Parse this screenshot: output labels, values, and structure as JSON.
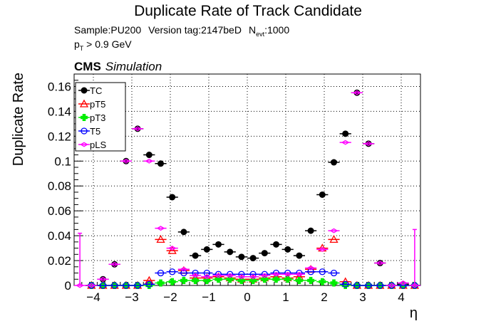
{
  "header": {
    "title": "Duplicate Rate of Track Candidate",
    "sample": "Sample:PU200",
    "version": "Version tag:2147beD",
    "nevt_symbol": "N",
    "nevt_sub": "evt",
    "nevt_value": ":1000",
    "pt_symbol": "p",
    "pt_sub": "T",
    "pt_cut": " > 0.9 GeV",
    "cms": "CMS",
    "simulation": "Simulation"
  },
  "chart_data": {
    "type": "scatter",
    "title": "Duplicate Rate of Track Candidate",
    "xlabel": "η",
    "ylabel": "Duplicate Rate",
    "xlim": [
      -4.5,
      4.5
    ],
    "ylim": [
      0,
      0.17
    ],
    "x_ticks": [
      "−4",
      "−3",
      "−2",
      "−1",
      "0",
      "1",
      "2",
      "3",
      "4"
    ],
    "x_tick_values": [
      -4,
      -3,
      -2,
      -1,
      0,
      1,
      2,
      3,
      4
    ],
    "y_ticks": [
      "0",
      "0.02",
      "0.04",
      "0.06",
      "0.08",
      "0.1",
      "0.12",
      "0.14",
      "0.16"
    ],
    "y_tick_values": [
      0,
      0.02,
      0.04,
      0.06,
      0.08,
      0.1,
      0.12,
      0.14,
      0.16
    ],
    "grid": true,
    "legend_position": "top-left",
    "x": [
      -4.35,
      -4.05,
      -3.75,
      -3.45,
      -3.15,
      -2.85,
      -2.55,
      -2.25,
      -1.95,
      -1.65,
      -1.35,
      -1.05,
      -0.75,
      -0.45,
      -0.15,
      0.15,
      0.45,
      0.75,
      1.05,
      1.35,
      1.65,
      1.95,
      2.25,
      2.55,
      2.85,
      3.15,
      3.45,
      3.75,
      4.05,
      4.35
    ],
    "x_err": 0.15,
    "series": [
      {
        "name": "TC",
        "color": "#000000",
        "marker": "filled-circle",
        "values": [
          null,
          0.0,
          0.005,
          0.017,
          0.1,
          0.126,
          0.105,
          0.098,
          0.071,
          0.043,
          0.024,
          0.029,
          0.033,
          0.027,
          0.023,
          0.022,
          0.026,
          0.033,
          0.029,
          0.024,
          0.044,
          0.073,
          0.099,
          0.122,
          0.155,
          0.114,
          0.018,
          0.0,
          0.001,
          0.0
        ]
      },
      {
        "name": "pT5",
        "color": "#ff0000",
        "marker": "open-triangle",
        "values": [
          null,
          0.0,
          0.0,
          0.0,
          0.0,
          0.0,
          0.004,
          0.037,
          0.028,
          0.012,
          0.006,
          0.006,
          0.007,
          0.006,
          0.005,
          0.005,
          0.006,
          0.007,
          0.006,
          0.007,
          0.013,
          0.03,
          0.037,
          0.003,
          0.0,
          0.0,
          0.0,
          0.0,
          0.0,
          0.0
        ]
      },
      {
        "name": "pT3",
        "color": "#00ee00",
        "marker": "filled-cross",
        "values": [
          null,
          0.0,
          0.0,
          0.0,
          0.0,
          0.0,
          0.0,
          0.002,
          0.003,
          0.004,
          0.004,
          0.004,
          0.005,
          0.005,
          0.004,
          0.004,
          0.005,
          0.005,
          0.005,
          0.004,
          0.004,
          0.003,
          0.002,
          0.0,
          0.0,
          0.0,
          0.0,
          0.0,
          0.0,
          0.0
        ]
      },
      {
        "name": "T5",
        "color": "#0000ff",
        "marker": "open-circle",
        "values": [
          null,
          0.0,
          0.0,
          0.0,
          0.0,
          0.0,
          0.001,
          0.01,
          0.011,
          0.01,
          0.01,
          0.01,
          0.009,
          0.009,
          0.009,
          0.009,
          0.009,
          0.01,
          0.01,
          0.01,
          0.011,
          0.011,
          0.01,
          0.001,
          0.0,
          0.0,
          0.0,
          0.0,
          0.0,
          0.0
        ]
      },
      {
        "name": "pLS",
        "color": "#ff00ff",
        "marker": "open-diamond",
        "values": [
          0.0,
          0.0,
          0.005,
          0.017,
          0.1,
          0.126,
          0.1,
          0.046,
          0.03,
          0.013,
          0.008,
          0.007,
          0.008,
          0.008,
          0.007,
          0.007,
          0.008,
          0.009,
          0.009,
          0.009,
          0.014,
          0.029,
          0.044,
          0.115,
          0.155,
          0.114,
          0.018,
          0.0,
          0.002,
          0.0
        ],
        "y_err": [
          0.042,
          0,
          0,
          0,
          0,
          0,
          0,
          0,
          0,
          0,
          0,
          0,
          0,
          0,
          0,
          0,
          0,
          0,
          0,
          0,
          0,
          0,
          0,
          0,
          0,
          0,
          0,
          0,
          0,
          0.045
        ]
      }
    ]
  }
}
